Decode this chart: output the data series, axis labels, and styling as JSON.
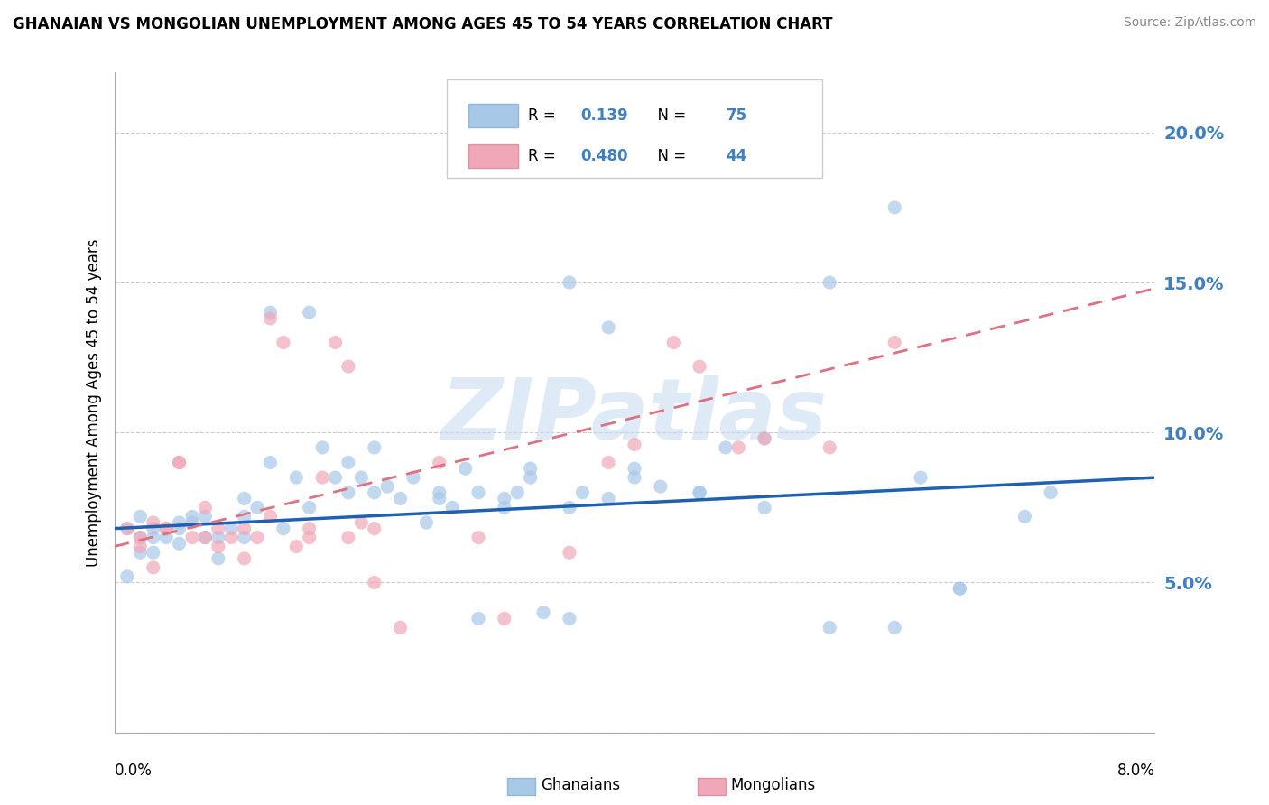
{
  "title": "GHANAIAN VS MONGOLIAN UNEMPLOYMENT AMONG AGES 45 TO 54 YEARS CORRELATION CHART",
  "source": "Source: ZipAtlas.com",
  "ylabel": "Unemployment Among Ages 45 to 54 years",
  "r1": "0.139",
  "n1": "75",
  "r2": "0.480",
  "n2": "44",
  "color_blue": "#a8c8e8",
  "color_blue_line": "#2060b0",
  "color_pink": "#f0a8b8",
  "color_pink_line": "#e07080",
  "color_blue_text": "#4080c0",
  "watermark": "ZIPatlas",
  "xlim": [
    0.0,
    0.08
  ],
  "ylim": [
    0.0,
    0.22
  ],
  "yticks": [
    0.05,
    0.1,
    0.15,
    0.2
  ],
  "ytick_labels": [
    "5.0%",
    "10.0%",
    "15.0%",
    "20.0%"
  ],
  "blue_line_y0": 0.068,
  "blue_line_y1": 0.085,
  "pink_line_y0": 0.062,
  "pink_line_y1": 0.148,
  "ghanaian_x": [
    0.001,
    0.002,
    0.002,
    0.003,
    0.003,
    0.004,
    0.005,
    0.005,
    0.006,
    0.007,
    0.007,
    0.008,
    0.009,
    0.01,
    0.01,
    0.011,
    0.012,
    0.013,
    0.014,
    0.015,
    0.016,
    0.017,
    0.018,
    0.019,
    0.02,
    0.021,
    0.022,
    0.023,
    0.024,
    0.025,
    0.026,
    0.027,
    0.028,
    0.03,
    0.031,
    0.032,
    0.033,
    0.035,
    0.036,
    0.038,
    0.03,
    0.032,
    0.035,
    0.038,
    0.04,
    0.042,
    0.045,
    0.047,
    0.05,
    0.055,
    0.001,
    0.002,
    0.003,
    0.005,
    0.006,
    0.008,
    0.01,
    0.012,
    0.015,
    0.018,
    0.02,
    0.025,
    0.028,
    0.035,
    0.04,
    0.045,
    0.05,
    0.055,
    0.06,
    0.065,
    0.06,
    0.062,
    0.065,
    0.07,
    0.072
  ],
  "ghanaian_y": [
    0.068,
    0.065,
    0.072,
    0.06,
    0.068,
    0.065,
    0.07,
    0.063,
    0.07,
    0.065,
    0.072,
    0.065,
    0.068,
    0.072,
    0.065,
    0.075,
    0.09,
    0.068,
    0.085,
    0.075,
    0.095,
    0.085,
    0.09,
    0.085,
    0.095,
    0.082,
    0.078,
    0.085,
    0.07,
    0.08,
    0.075,
    0.088,
    0.038,
    0.078,
    0.08,
    0.088,
    0.04,
    0.038,
    0.08,
    0.078,
    0.075,
    0.085,
    0.15,
    0.135,
    0.088,
    0.082,
    0.08,
    0.095,
    0.075,
    0.15,
    0.052,
    0.06,
    0.065,
    0.068,
    0.072,
    0.058,
    0.078,
    0.14,
    0.14,
    0.08,
    0.08,
    0.078,
    0.08,
    0.075,
    0.085,
    0.08,
    0.098,
    0.035,
    0.035,
    0.048,
    0.175,
    0.085,
    0.048,
    0.072,
    0.08
  ],
  "mongolian_x": [
    0.001,
    0.002,
    0.003,
    0.004,
    0.005,
    0.006,
    0.007,
    0.008,
    0.009,
    0.01,
    0.011,
    0.012,
    0.013,
    0.014,
    0.015,
    0.016,
    0.017,
    0.018,
    0.019,
    0.02,
    0.002,
    0.003,
    0.004,
    0.005,
    0.007,
    0.008,
    0.01,
    0.012,
    0.015,
    0.018,
    0.02,
    0.022,
    0.025,
    0.028,
    0.03,
    0.035,
    0.038,
    0.04,
    0.043,
    0.045,
    0.048,
    0.05,
    0.055,
    0.06
  ],
  "mongolian_y": [
    0.068,
    0.065,
    0.07,
    0.068,
    0.09,
    0.065,
    0.075,
    0.062,
    0.065,
    0.068,
    0.065,
    0.138,
    0.13,
    0.062,
    0.065,
    0.085,
    0.13,
    0.122,
    0.07,
    0.068,
    0.062,
    0.055,
    0.068,
    0.09,
    0.065,
    0.068,
    0.058,
    0.072,
    0.068,
    0.065,
    0.05,
    0.035,
    0.09,
    0.065,
    0.038,
    0.06,
    0.09,
    0.096,
    0.13,
    0.122,
    0.095,
    0.098,
    0.095,
    0.13
  ]
}
